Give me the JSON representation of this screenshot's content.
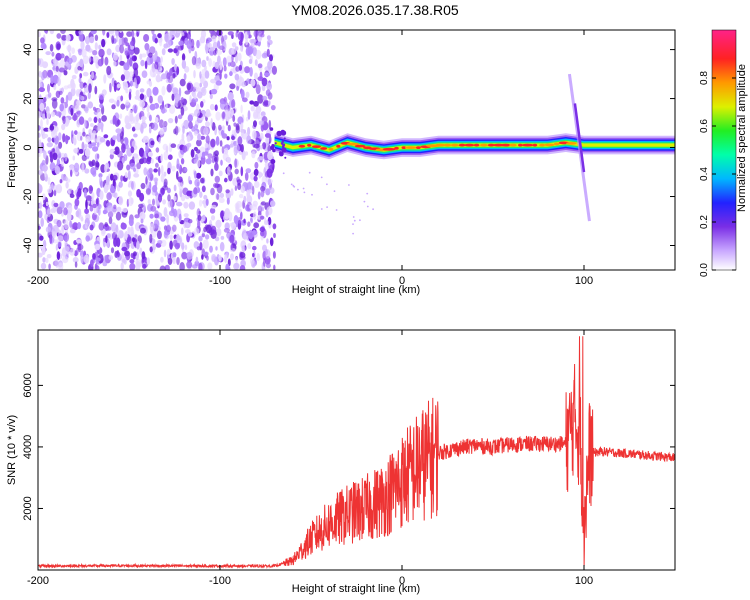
{
  "title": "YM08.2026.035.17.38.R05",
  "colors": {
    "signal_red": "#ee3333",
    "scatter_purple": "#7a2ee6",
    "axis": "#000000"
  },
  "chart_data": [
    {
      "type": "heatmap",
      "name": "spectrogram",
      "xlabel": "Height of straight line (km)",
      "ylabel": "Frequency (Hz)",
      "xlim": [
        -200,
        150
      ],
      "ylim": [
        -50,
        48
      ],
      "xticks": [
        -200,
        -100,
        0,
        100
      ],
      "yticks": [
        -40,
        -20,
        0,
        20,
        40
      ],
      "xtick_labels": [
        "-200",
        "-100",
        "0",
        "100"
      ],
      "ytick_labels": [
        "-40",
        "-20",
        "0",
        "20",
        "40"
      ],
      "noise_region_x": [
        -200,
        -70
      ],
      "band_center_hz": [
        [
          -70,
          2
        ],
        [
          -60,
          0
        ],
        [
          -50,
          1
        ],
        [
          -40,
          -1
        ],
        [
          -30,
          2
        ],
        [
          -20,
          0
        ],
        [
          -10,
          -1
        ],
        [
          0,
          0
        ],
        [
          10,
          0
        ],
        [
          20,
          1
        ],
        [
          40,
          1
        ],
        [
          60,
          1
        ],
        [
          80,
          1
        ],
        [
          90,
          2
        ],
        [
          100,
          1
        ],
        [
          150,
          1
        ]
      ],
      "dispersion_streak": {
        "x": [
          92,
          103
        ],
        "freq_hz": [
          30,
          -30
        ]
      },
      "colorbar": {
        "label": "Normalized spectral amplitude",
        "range": [
          0.0,
          1.0
        ],
        "ticks": [
          0.0,
          0.2,
          0.4,
          0.6,
          0.8
        ],
        "tick_labels": [
          "0.0",
          "0.2",
          "0.4",
          "0.6",
          "0.8"
        ]
      }
    },
    {
      "type": "line",
      "name": "snr",
      "xlabel": "Height of straight line (km)",
      "ylabel": "SNR (10 * v/v)",
      "xlim": [
        -200,
        150
      ],
      "ylim": [
        0,
        7800
      ],
      "xticks": [
        -200,
        -100,
        0,
        100
      ],
      "yticks": [
        2000,
        4000,
        6000
      ],
      "xtick_labels": [
        "-200",
        "-100",
        "0",
        "100"
      ],
      "ytick_labels": [
        "2000",
        "4000",
        "6000"
      ],
      "series": [
        {
          "name": "SNR",
          "x": [
            -200,
            -150,
            -100,
            -70,
            -60,
            -50,
            -40,
            -30,
            -20,
            -10,
            0,
            10,
            20,
            30,
            40,
            50,
            60,
            70,
            80,
            90,
            95,
            98,
            100,
            103,
            110,
            120,
            130,
            140,
            150
          ],
          "y": [
            130,
            140,
            130,
            130,
            300,
            1000,
            1500,
            1800,
            2000,
            2300,
            2900,
            3400,
            3800,
            3950,
            4050,
            4000,
            4080,
            4100,
            4100,
            4100,
            5000,
            4200,
            1500,
            3800,
            3850,
            3800,
            3750,
            3700,
            3650
          ]
        }
      ]
    }
  ]
}
